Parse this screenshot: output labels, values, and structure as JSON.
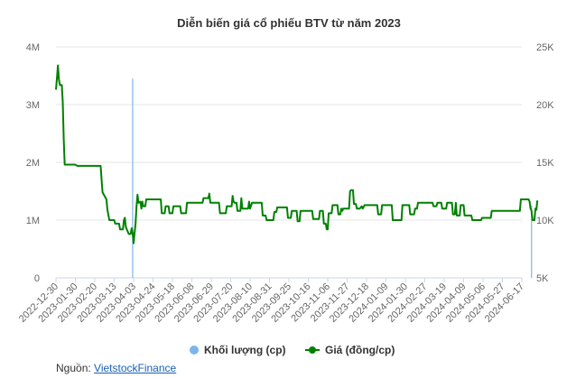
{
  "chart_data": {
    "type": "line",
    "title": "Diễn biến giá cổ phiếu BTV từ năm 2023",
    "x_tick_labels": [
      "2022-12-30",
      "2023-01-30",
      "2023-02-20",
      "2023-03-13",
      "2023-04-03",
      "2023-04-24",
      "2023-05-18",
      "2023-06-08",
      "2023-06-29",
      "2023-07-20",
      "2023-08-10",
      "2023-08-31",
      "2023-09-25",
      "2023-10-16",
      "2023-11-06",
      "2023-11-27",
      "2023-12-18",
      "2024-01-09",
      "2024-01-30",
      "2024-02-27",
      "2024-03-19",
      "2024-04-09",
      "2024-05-06",
      "2024-05-27",
      "2024-06-17"
    ],
    "y_left_ticks": [
      "0",
      "1M",
      "2M",
      "3M",
      "4M"
    ],
    "y_left_range": [
      0,
      4000000
    ],
    "y_right_ticks": [
      "5K",
      "10K",
      "15K",
      "20K",
      "25K"
    ],
    "y_right_range": [
      5000,
      25000
    ],
    "grid": true,
    "legend_position": "bottom",
    "series": [
      {
        "name": "Khối lượng (cp)",
        "type": "bar",
        "axis": "left",
        "color": "#7cb5ec",
        "points": [
          {
            "x": 3.95,
            "y": 3450000
          },
          {
            "x": 24.5,
            "y": 1250000
          }
        ]
      },
      {
        "name": "Giá (đồng/cp)",
        "type": "line",
        "axis": "right",
        "color": "#008000",
        "points": [
          [
            0,
            21300
          ],
          [
            0.05,
            22300
          ],
          [
            0.1,
            23400
          ],
          [
            0.15,
            22200
          ],
          [
            0.2,
            21700
          ],
          [
            0.3,
            21700
          ],
          [
            0.35,
            20200
          ],
          [
            0.4,
            17000
          ],
          [
            0.45,
            14800
          ],
          [
            1.0,
            14800
          ],
          [
            1.1,
            14700
          ],
          [
            2.3,
            14700
          ],
          [
            2.35,
            13500
          ],
          [
            2.4,
            12400
          ],
          [
            2.6,
            11800
          ],
          [
            2.65,
            10900
          ],
          [
            2.75,
            10000
          ],
          [
            3.0,
            10000
          ],
          [
            3.05,
            9700
          ],
          [
            3.25,
            9700
          ],
          [
            3.3,
            9200
          ],
          [
            3.45,
            9200
          ],
          [
            3.5,
            10000
          ],
          [
            3.55,
            10200
          ],
          [
            3.6,
            9400
          ],
          [
            3.75,
            8800
          ],
          [
            3.85,
            8800
          ],
          [
            3.9,
            9300
          ],
          [
            3.95,
            8900
          ],
          [
            4.0,
            8000
          ],
          [
            4.05,
            8900
          ],
          [
            4.1,
            9700
          ],
          [
            4.15,
            11200
          ],
          [
            4.2,
            12200
          ],
          [
            4.25,
            11500
          ],
          [
            4.35,
            11600
          ],
          [
            4.4,
            11000
          ],
          [
            4.45,
            11600
          ],
          [
            4.5,
            11200
          ],
          [
            4.6,
            11200
          ],
          [
            4.65,
            11800
          ],
          [
            5.4,
            11800
          ],
          [
            5.45,
            10600
          ],
          [
            5.6,
            10600
          ],
          [
            5.65,
            11200
          ],
          [
            5.8,
            11200
          ],
          [
            5.85,
            10600
          ],
          [
            6.0,
            10600
          ],
          [
            6.05,
            11200
          ],
          [
            6.4,
            11200
          ],
          [
            6.45,
            10600
          ],
          [
            6.7,
            10600
          ],
          [
            6.75,
            11500
          ],
          [
            7.55,
            11500
          ],
          [
            7.6,
            11900
          ],
          [
            7.85,
            11900
          ],
          [
            7.9,
            12300
          ],
          [
            7.95,
            11500
          ],
          [
            8.4,
            11500
          ],
          [
            8.45,
            10600
          ],
          [
            8.75,
            10600
          ],
          [
            8.8,
            11200
          ],
          [
            9.05,
            11200
          ],
          [
            9.1,
            12100
          ],
          [
            9.15,
            11600
          ],
          [
            9.2,
            11500
          ],
          [
            9.3,
            11500
          ],
          [
            9.35,
            10800
          ],
          [
            9.5,
            10800
          ],
          [
            9.55,
            11900
          ],
          [
            9.6,
            11000
          ],
          [
            9.9,
            11000
          ],
          [
            9.95,
            11600
          ],
          [
            10.0,
            11000
          ],
          [
            10.1,
            11500
          ],
          [
            10.6,
            11500
          ],
          [
            10.65,
            10400
          ],
          [
            10.8,
            10400
          ],
          [
            10.85,
            10000
          ],
          [
            11.2,
            10000
          ],
          [
            11.25,
            10700
          ],
          [
            11.35,
            10700
          ],
          [
            11.4,
            11100
          ],
          [
            11.9,
            11100
          ],
          [
            11.95,
            10200
          ],
          [
            12.1,
            10200
          ],
          [
            12.15,
            10800
          ],
          [
            12.4,
            10800
          ],
          [
            12.45,
            9900
          ],
          [
            12.55,
            9900
          ],
          [
            12.6,
            10800
          ],
          [
            13.2,
            10800
          ],
          [
            13.25,
            10100
          ],
          [
            13.55,
            10100
          ],
          [
            13.6,
            10800
          ],
          [
            13.75,
            10800
          ],
          [
            13.8,
            9700
          ],
          [
            13.9,
            9700
          ],
          [
            13.95,
            9200
          ],
          [
            14.0,
            9200
          ],
          [
            14.05,
            10600
          ],
          [
            14.2,
            10600
          ],
          [
            14.25,
            11300
          ],
          [
            14.5,
            11300
          ],
          [
            14.55,
            10500
          ],
          [
            14.65,
            10500
          ],
          [
            14.7,
            11000
          ],
          [
            14.75,
            10800
          ],
          [
            14.8,
            11000
          ],
          [
            15.1,
            11000
          ],
          [
            15.15,
            12500
          ],
          [
            15.2,
            12600
          ],
          [
            15.3,
            12600
          ],
          [
            15.35,
            11400
          ],
          [
            15.45,
            11400
          ],
          [
            15.5,
            11000
          ],
          [
            15.6,
            11000
          ],
          [
            15.65,
            11000
          ],
          [
            15.75,
            11200
          ],
          [
            15.8,
            11000
          ],
          [
            15.9,
            11300
          ],
          [
            16.55,
            11300
          ],
          [
            16.6,
            10500
          ],
          [
            16.75,
            10500
          ],
          [
            16.8,
            11300
          ],
          [
            17.3,
            11300
          ],
          [
            17.35,
            10000
          ],
          [
            17.8,
            10000
          ],
          [
            17.85,
            11300
          ],
          [
            18.2,
            11300
          ],
          [
            18.25,
            10500
          ],
          [
            18.45,
            10500
          ],
          [
            18.5,
            11000
          ],
          [
            18.6,
            11000
          ],
          [
            18.65,
            11500
          ],
          [
            19.4,
            11500
          ],
          [
            19.45,
            11200
          ],
          [
            19.6,
            11200
          ],
          [
            19.65,
            11500
          ],
          [
            19.85,
            11500
          ],
          [
            19.9,
            11000
          ],
          [
            20.1,
            11000
          ],
          [
            20.15,
            11500
          ],
          [
            20.4,
            11500
          ],
          [
            20.45,
            10500
          ],
          [
            20.55,
            10500
          ],
          [
            20.6,
            11500
          ],
          [
            20.65,
            10400
          ],
          [
            20.8,
            10400
          ],
          [
            20.85,
            11300
          ],
          [
            21.0,
            11300
          ],
          [
            21.05,
            10400
          ],
          [
            21.4,
            10400
          ],
          [
            21.45,
            10000
          ],
          [
            21.9,
            10000
          ],
          [
            21.95,
            10200
          ],
          [
            22.4,
            10200
          ],
          [
            22.45,
            10800
          ],
          [
            23.9,
            10800
          ],
          [
            23.95,
            11800
          ],
          [
            24.35,
            11800
          ],
          [
            24.4,
            11600
          ],
          [
            24.45,
            11000
          ],
          [
            24.5,
            10800
          ],
          [
            24.55,
            10000
          ],
          [
            24.65,
            10000
          ],
          [
            24.7,
            11000
          ],
          [
            24.75,
            10900
          ],
          [
            24.8,
            11700
          ]
        ]
      }
    ]
  },
  "source": {
    "label": "Nguồn:",
    "link_text": "VietstockFinance"
  }
}
